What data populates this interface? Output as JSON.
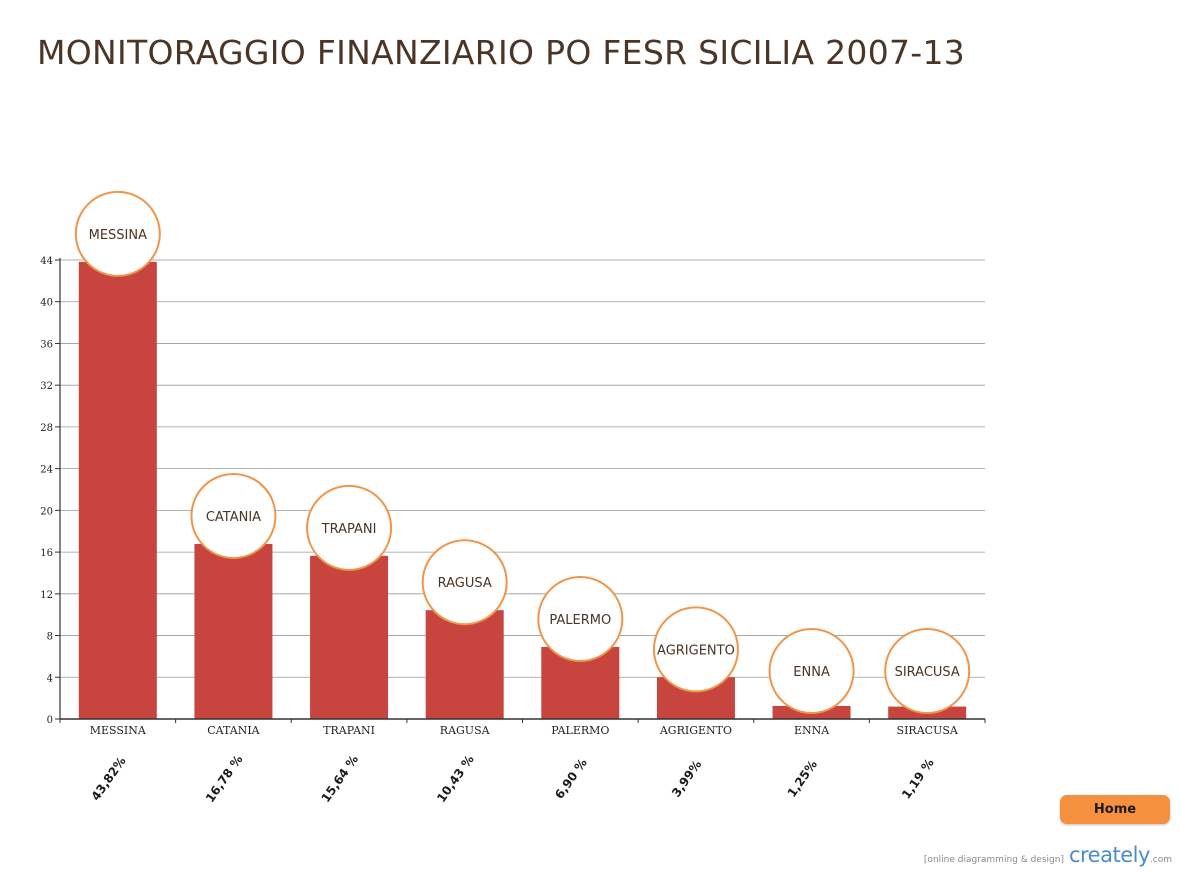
{
  "page": {
    "title": "MONITORAGGIO FINANZIARIO PO FESR SICILIA 2007-13",
    "home_button": "Home",
    "footer_tagline": "[online diagramming & design]",
    "footer_brand": "creately",
    "footer_brand_suffix": ".com"
  },
  "colors": {
    "bar": "#c8443e",
    "bubble_stroke": "#f0954a",
    "title": "#4a3526",
    "grid": "#999999"
  },
  "chart_data": {
    "type": "bar",
    "categories": [
      "MESSINA",
      "CATANIA",
      "TRAPANI",
      "RAGUSA",
      "PALERMO",
      "AGRIGENTO",
      "ENNA",
      "SIRACUSA"
    ],
    "values": [
      43.82,
      16.78,
      15.64,
      10.43,
      6.9,
      3.99,
      1.25,
      1.19
    ],
    "percent_labels": [
      "43,82%",
      "16,78 %",
      "15,64 %",
      "10,43 %",
      "6,90 %",
      "3,99%",
      "1,25%",
      "1,19 %"
    ],
    "bubble_labels": [
      "MESSINA",
      "CATANIA",
      "TRAPANI",
      "RAGUSA",
      "PALERMO",
      "AGRIGENTO",
      "ENNA",
      "SIRACUSA"
    ],
    "ylim": [
      0,
      44
    ],
    "yticks": [
      0,
      4,
      8,
      12,
      16,
      20,
      24,
      28,
      32,
      36,
      40,
      44
    ],
    "grid": true,
    "xlabel": "",
    "ylabel": ""
  }
}
